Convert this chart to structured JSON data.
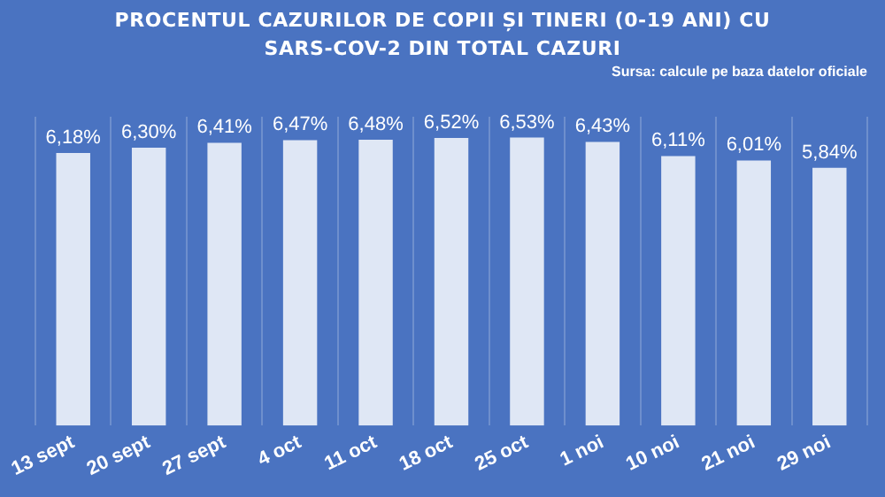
{
  "chart_data": {
    "type": "bar",
    "title": "PROCENTUL CAZURILOR DE COPII ȘI TINERI (0-19 ANI) CU SARS-COV-2 DIN TOTAL CAZURI",
    "annotations": [
      "Sursa: calcule pe baza datelor oficiale"
    ],
    "categories": [
      "13 sept",
      "20 sept",
      "27 sept",
      "4 oct",
      "11 oct",
      "18 oct",
      "25 oct",
      "1 noi",
      "10 noi",
      "21 noi",
      "29 noi"
    ],
    "values": [
      6.18,
      6.3,
      6.41,
      6.47,
      6.48,
      6.52,
      6.53,
      6.43,
      6.11,
      6.01,
      5.84
    ],
    "value_labels": [
      "6,18%",
      "6,30%",
      "6,41%",
      "6,47%",
      "6,48%",
      "6,52%",
      "6,53%",
      "6,43%",
      "6,11%",
      "6,01%",
      "5,84%"
    ],
    "color": "#dfe7f5",
    "ylim": [
      0,
      7
    ],
    "grid": "x",
    "tick_labels": "x"
  }
}
